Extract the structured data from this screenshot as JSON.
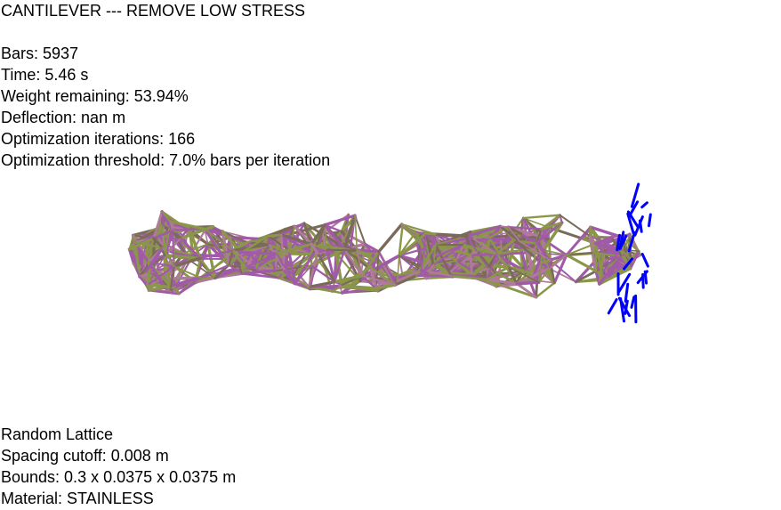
{
  "header": {
    "title": "CANTILEVER --- REMOVE LOW STRESS"
  },
  "stats": [
    "Bars: 5937",
    "Time: 5.46 s",
    "Weight remaining: 53.94%",
    "Deflection: nan m",
    "Optimization iterations: 166",
    "Optimization threshold: 7.0% bars per iteration"
  ],
  "lattice_info": [
    "Random Lattice",
    "Spacing cutoff: 0.008 m",
    "Bounds: 0.3 x 0.0375 x 0.0375 m",
    "Material: STAINLESS"
  ],
  "colors": {
    "bar_purple": "#a05aa8",
    "bar_olive": "#8a9648",
    "bar_brown": "#7a6a5a",
    "bar_mauve": "#b07a9a",
    "load_arrows": "#0000ff"
  }
}
